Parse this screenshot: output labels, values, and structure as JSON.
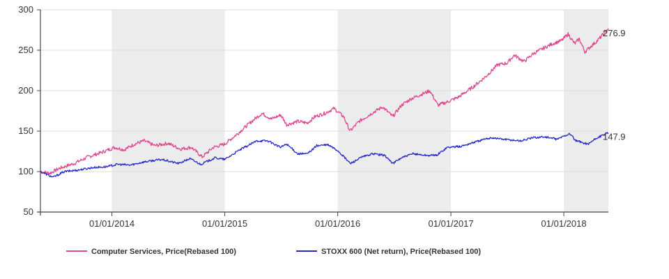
{
  "chart_data": {
    "type": "line",
    "title": "",
    "xlabel": "",
    "ylabel": "",
    "xlim": [
      "2013-05-15",
      "2018-05-25"
    ],
    "ylim": [
      50,
      300
    ],
    "y_ticks": [
      50,
      100,
      150,
      200,
      250,
      300
    ],
    "x_ticks": [
      {
        "date": "2014-01-01",
        "label": "01/01/2014"
      },
      {
        "date": "2015-01-01",
        "label": "01/01/2015"
      },
      {
        "date": "2016-01-01",
        "label": "01/01/2016"
      },
      {
        "date": "2017-01-01",
        "label": "01/01/2017"
      },
      {
        "date": "2018-01-01",
        "label": "01/01/2018"
      }
    ],
    "shaded_years": [
      [
        "2014-01-01",
        "2015-01-01"
      ],
      [
        "2016-01-01",
        "2017-01-01"
      ],
      [
        "2018-01-01",
        "2018-05-25"
      ]
    ],
    "grid": "horizontal",
    "legend_position": "bottom",
    "series": [
      {
        "name": "Computer Services, Price(Rebased 100)",
        "color": "#e0458f",
        "end_label": "276.9",
        "points": [
          [
            "2013-05-15",
            100
          ],
          [
            "2013-06-15",
            98
          ],
          [
            "2013-07-15",
            104
          ],
          [
            "2013-09-01",
            110
          ],
          [
            "2013-10-15",
            118
          ],
          [
            "2013-12-01",
            124
          ],
          [
            "2014-01-10",
            130
          ],
          [
            "2014-02-10",
            127
          ],
          [
            "2014-03-15",
            134
          ],
          [
            "2014-04-15",
            138
          ],
          [
            "2014-05-20",
            132
          ],
          [
            "2014-07-01",
            135
          ],
          [
            "2014-08-10",
            128
          ],
          [
            "2014-09-15",
            130
          ],
          [
            "2014-10-20",
            118
          ],
          [
            "2014-11-25",
            130
          ],
          [
            "2015-01-01",
            134
          ],
          [
            "2015-02-15",
            148
          ],
          [
            "2015-04-01",
            163
          ],
          [
            "2015-05-01",
            172
          ],
          [
            "2015-06-01",
            165
          ],
          [
            "2015-07-01",
            170
          ],
          [
            "2015-07-20",
            158
          ],
          [
            "2015-08-25",
            162
          ],
          [
            "2015-09-25",
            160
          ],
          [
            "2015-10-20",
            168
          ],
          [
            "2015-11-20",
            172
          ],
          [
            "2015-12-20",
            178
          ],
          [
            "2016-01-20",
            168
          ],
          [
            "2016-02-10",
            150
          ],
          [
            "2016-03-10",
            162
          ],
          [
            "2016-04-20",
            172
          ],
          [
            "2016-05-25",
            180
          ],
          [
            "2016-06-27",
            168
          ],
          [
            "2016-07-25",
            182
          ],
          [
            "2016-08-25",
            190
          ],
          [
            "2016-10-01",
            196
          ],
          [
            "2016-10-25",
            200
          ],
          [
            "2016-11-20",
            182
          ],
          [
            "2016-12-20",
            186
          ],
          [
            "2017-01-25",
            192
          ],
          [
            "2017-03-15",
            205
          ],
          [
            "2017-04-25",
            218
          ],
          [
            "2017-06-01",
            232
          ],
          [
            "2017-07-01",
            234
          ],
          [
            "2017-07-25",
            244
          ],
          [
            "2017-08-25",
            236
          ],
          [
            "2017-09-25",
            246
          ],
          [
            "2017-10-25",
            252
          ],
          [
            "2017-11-25",
            258
          ],
          [
            "2017-12-25",
            262
          ],
          [
            "2018-01-15",
            270
          ],
          [
            "2018-02-05",
            258
          ],
          [
            "2018-02-20",
            264
          ],
          [
            "2018-03-10",
            248
          ],
          [
            "2018-03-30",
            255
          ],
          [
            "2018-04-20",
            262
          ],
          [
            "2018-05-25",
            276.9
          ]
        ]
      },
      {
        "name": "STOXX 600 (Net return), Price(Rebased 100)",
        "color": "#2727c8",
        "end_label": "147.9",
        "points": [
          [
            "2013-05-15",
            100
          ],
          [
            "2013-06-25",
            93
          ],
          [
            "2013-08-01",
            100
          ],
          [
            "2013-09-15",
            102
          ],
          [
            "2013-11-01",
            105
          ],
          [
            "2013-12-15",
            106
          ],
          [
            "2014-01-20",
            109
          ],
          [
            "2014-03-01",
            108
          ],
          [
            "2014-04-15",
            112
          ],
          [
            "2014-06-10",
            115
          ],
          [
            "2014-08-05",
            110
          ],
          [
            "2014-09-10",
            116
          ],
          [
            "2014-10-15",
            109
          ],
          [
            "2014-12-01",
            117
          ],
          [
            "2015-01-01",
            115
          ],
          [
            "2015-02-15",
            126
          ],
          [
            "2015-04-15",
            138
          ],
          [
            "2015-05-20",
            138
          ],
          [
            "2015-06-30",
            130
          ],
          [
            "2015-07-20",
            134
          ],
          [
            "2015-08-25",
            122
          ],
          [
            "2015-09-25",
            122
          ],
          [
            "2015-10-25",
            132
          ],
          [
            "2015-12-01",
            133
          ],
          [
            "2016-01-01",
            126
          ],
          [
            "2016-02-11",
            110
          ],
          [
            "2016-03-20",
            118
          ],
          [
            "2016-04-25",
            122
          ],
          [
            "2016-06-01",
            120
          ],
          [
            "2016-06-27",
            110
          ],
          [
            "2016-07-25",
            117
          ],
          [
            "2016-09-01",
            122
          ],
          [
            "2016-10-15",
            120
          ],
          [
            "2016-11-15",
            120
          ],
          [
            "2016-12-20",
            130
          ],
          [
            "2017-02-01",
            131
          ],
          [
            "2017-03-15",
            136
          ],
          [
            "2017-05-10",
            142
          ],
          [
            "2017-06-20",
            140
          ],
          [
            "2017-08-15",
            138
          ],
          [
            "2017-09-25",
            142
          ],
          [
            "2017-11-01",
            143
          ],
          [
            "2017-12-10",
            140
          ],
          [
            "2018-01-20",
            147
          ],
          [
            "2018-02-09",
            138
          ],
          [
            "2018-03-20",
            134
          ],
          [
            "2018-04-20",
            142
          ],
          [
            "2018-05-25",
            147.9
          ]
        ]
      }
    ]
  }
}
